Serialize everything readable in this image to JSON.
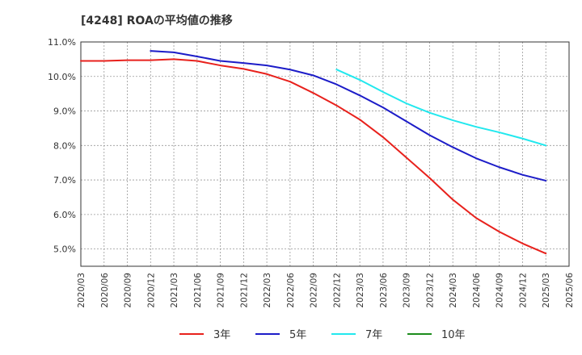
{
  "chart_data": {
    "type": "line",
    "title": "[4248]  ROAの平均値の推移",
    "xlabel": "",
    "ylabel": "",
    "ylim": [
      4.5,
      11.0
    ],
    "yticks": [
      5.0,
      6.0,
      7.0,
      8.0,
      9.0,
      10.0,
      11.0
    ],
    "ytick_labels": [
      "5.0%",
      "6.0%",
      "7.0%",
      "8.0%",
      "9.0%",
      "10.0%",
      "11.0%"
    ],
    "categories": [
      "2020/03",
      "2020/06",
      "2020/09",
      "2020/12",
      "2021/03",
      "2021/06",
      "2021/09",
      "2021/12",
      "2022/03",
      "2022/06",
      "2022/09",
      "2022/12",
      "2023/03",
      "2023/06",
      "2023/09",
      "2023/12",
      "2024/03",
      "2024/06",
      "2024/09",
      "2024/12",
      "2025/03",
      "2025/06"
    ],
    "grid": true,
    "legend_position": "bottom",
    "series": [
      {
        "name": "3年",
        "color": "#e8211c",
        "values": [
          10.45,
          10.45,
          10.47,
          10.47,
          10.5,
          10.45,
          10.32,
          10.22,
          10.07,
          9.85,
          9.52,
          9.16,
          8.75,
          8.24,
          7.65,
          7.06,
          6.43,
          5.9,
          5.5,
          5.16,
          4.87,
          null
        ]
      },
      {
        "name": "5年",
        "color": "#1c1cc8",
        "values": [
          null,
          null,
          null,
          10.74,
          10.7,
          10.58,
          10.45,
          10.39,
          10.32,
          10.2,
          10.03,
          9.77,
          9.45,
          9.1,
          8.7,
          8.3,
          7.95,
          7.63,
          7.37,
          7.15,
          6.98,
          null
        ]
      },
      {
        "name": "7年",
        "color": "#22e8ee",
        "values": [
          null,
          null,
          null,
          null,
          null,
          null,
          null,
          null,
          null,
          null,
          null,
          10.2,
          9.9,
          9.55,
          9.22,
          8.95,
          8.73,
          8.54,
          8.38,
          8.2,
          8.0,
          null
        ]
      },
      {
        "name": "10年",
        "color": "#1c8c1c",
        "values": [
          null,
          null,
          null,
          null,
          null,
          null,
          null,
          null,
          null,
          null,
          null,
          null,
          null,
          null,
          null,
          null,
          null,
          null,
          null,
          null,
          null,
          null
        ]
      }
    ]
  }
}
